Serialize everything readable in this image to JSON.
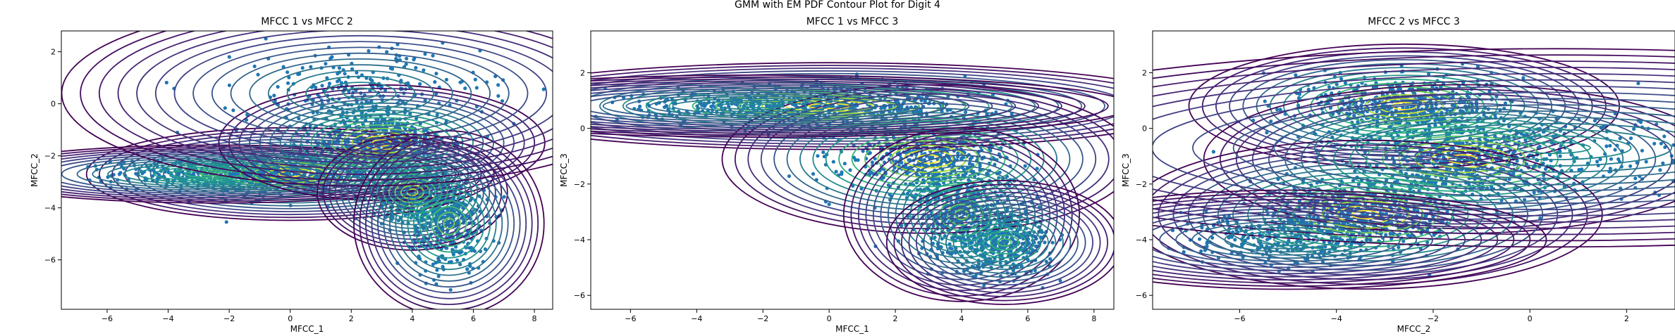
{
  "suptitle": "GMM with EM PDF Contour Plot for Digit 4",
  "colors": {
    "scatter": "#1f77b4",
    "contour_low": "#440154",
    "contour_mid": "#21918c",
    "contour_high": "#fde725"
  },
  "chart_data": [
    {
      "type": "scatter",
      "title": "MFCC 1 vs MFCC 2",
      "xlabel": "MFCC_1",
      "ylabel": "MFCC_2",
      "xlim": [
        -7.5,
        8.6
      ],
      "ylim": [
        -7.9,
        2.8
      ],
      "xticks": [
        -6,
        -4,
        -2,
        0,
        2,
        4,
        6,
        8
      ],
      "yticks": [
        -6,
        -4,
        -2,
        0,
        2
      ],
      "gaussians": [
        {
          "mean": [
            0.0,
            -2.7
          ],
          "sd": [
            1.5,
            0.4
          ],
          "w": 1.0
        },
        {
          "mean": [
            -2.5,
            -2.7
          ],
          "sd": [
            1.8,
            0.25
          ],
          "w": 0.7
        },
        {
          "mean": [
            3.0,
            -1.5
          ],
          "sd": [
            1.2,
            0.5
          ],
          "w": 1.0
        },
        {
          "mean": [
            4.0,
            -3.4
          ],
          "sd": [
            0.7,
            0.5
          ],
          "w": 0.9
        },
        {
          "mean": [
            5.2,
            -4.6
          ],
          "sd": [
            0.7,
            0.8
          ],
          "w": 0.8
        },
        {
          "mean": [
            2.3,
            0.4
          ],
          "sd": [
            2.2,
            0.8
          ],
          "w": 0.5
        }
      ]
    },
    {
      "type": "scatter",
      "title": "MFCC 1 vs MFCC 3",
      "xlabel": "MFCC_1",
      "ylabel": "MFCC_3",
      "xlim": [
        -7.2,
        8.6
      ],
      "ylim": [
        -6.5,
        3.5
      ],
      "xticks": [
        -6,
        -4,
        -2,
        0,
        2,
        4,
        6,
        8
      ],
      "yticks": [
        -6,
        -4,
        -2,
        0,
        2
      ],
      "gaussians": [
        {
          "mean": [
            0.0,
            0.8
          ],
          "sd": [
            2.5,
            0.35
          ],
          "w": 1.0
        },
        {
          "mean": [
            3.0,
            -1.1
          ],
          "sd": [
            1.4,
            0.6
          ],
          "w": 1.0
        },
        {
          "mean": [
            4.0,
            -3.1
          ],
          "sd": [
            0.8,
            0.7
          ],
          "w": 0.8
        },
        {
          "mean": [
            5.3,
            -4.1
          ],
          "sd": [
            0.8,
            0.5
          ],
          "w": 0.7
        },
        {
          "mean": [
            -2.0,
            0.8
          ],
          "sd": [
            2.5,
            0.25
          ],
          "w": 0.5
        }
      ]
    },
    {
      "type": "scatter",
      "title": "MFCC 2 vs MFCC 3",
      "xlabel": "MFCC_2",
      "ylabel": "MFCC_3",
      "xlim": [
        -7.8,
        3.0
      ],
      "ylim": [
        -6.5,
        3.5
      ],
      "xticks": [
        -6,
        -4,
        -2,
        0,
        2
      ],
      "yticks": [
        -6,
        -4,
        -2,
        0,
        2
      ],
      "gaussians": [
        {
          "mean": [
            -2.6,
            0.8
          ],
          "sd": [
            1.0,
            0.5
          ],
          "w": 1.0
        },
        {
          "mean": [
            -1.4,
            -1.1
          ],
          "sd": [
            1.2,
            0.6
          ],
          "w": 1.0
        },
        {
          "mean": [
            -3.4,
            -3.1
          ],
          "sd": [
            1.1,
            0.6
          ],
          "w": 1.0
        },
        {
          "mean": [
            0.5,
            -0.7
          ],
          "sd": [
            3.0,
            0.8
          ],
          "w": 0.5
        },
        {
          "mean": [
            -5.0,
            -4.0
          ],
          "sd": [
            1.2,
            0.4
          ],
          "w": 0.5
        }
      ]
    }
  ]
}
